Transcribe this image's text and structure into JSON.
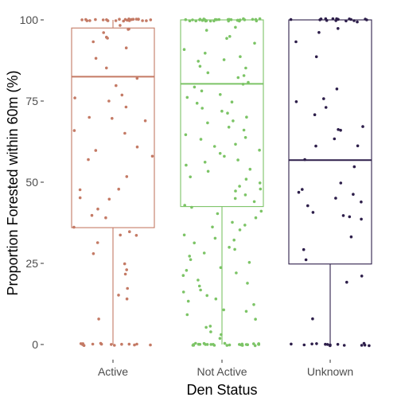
{
  "chart_data": {
    "type": "boxplot",
    "xlabel": "Den Status",
    "ylabel": "Proportion Forested within 60m (%)",
    "ylim": [
      0,
      100
    ],
    "yticks": [
      0,
      25,
      50,
      75,
      100
    ],
    "grid": false,
    "categories": [
      "Active",
      "Not Active",
      "Unknown"
    ],
    "colors": [
      "#c47a65",
      "#7cc466",
      "#2d1e4a"
    ],
    "boxes": [
      {
        "category": "Active",
        "min": 0,
        "q1": 36,
        "median": 82.5,
        "q3": 97.5,
        "max": 100
      },
      {
        "category": "Not Active",
        "min": 0,
        "q1": 42.5,
        "median": 80.3,
        "q3": 100,
        "max": 100
      },
      {
        "category": "Unknown",
        "min": 0,
        "q1": 24.8,
        "median": 56.8,
        "q3": 100,
        "max": 100
      }
    ],
    "points": [
      {
        "category": "Active",
        "values": [
          100,
          100,
          100,
          100,
          100,
          100,
          100,
          100,
          100,
          100,
          100,
          100,
          100,
          100,
          100,
          100,
          100,
          100,
          100,
          100,
          100,
          100,
          100,
          100,
          98,
          97,
          97,
          96,
          95,
          94,
          93,
          91,
          88,
          85,
          82,
          80,
          77,
          76,
          75,
          73,
          70,
          70,
          69,
          66,
          65,
          61,
          60,
          58,
          57,
          52,
          48,
          48,
          45,
          45,
          42,
          40,
          39,
          36,
          35,
          34,
          34,
          31,
          28,
          25,
          23,
          22,
          17,
          15,
          14,
          8,
          0,
          0,
          0,
          0,
          0,
          0,
          0,
          0,
          0,
          0,
          0,
          0,
          0,
          0
        ]
      },
      {
        "category": "Not Active",
        "values": [
          100,
          100,
          100,
          100,
          100,
          100,
          100,
          100,
          100,
          100,
          100,
          100,
          100,
          100,
          100,
          100,
          100,
          100,
          100,
          100,
          100,
          100,
          100,
          100,
          100,
          100,
          100,
          100,
          100,
          100,
          98,
          97,
          95,
          94,
          93,
          91,
          90,
          89,
          88,
          87,
          86,
          85,
          84,
          83,
          82,
          81,
          80,
          79,
          78,
          77,
          76,
          75,
          74,
          73,
          72,
          71,
          70,
          69,
          68,
          67,
          66,
          65,
          64,
          63,
          62,
          61,
          60,
          59,
          58,
          57,
          56,
          55,
          54,
          53,
          52,
          51,
          50,
          49,
          48,
          47,
          46,
          45,
          44,
          43,
          42,
          41,
          40,
          39,
          38,
          37,
          36,
          35,
          34,
          33,
          32,
          31,
          30,
          29,
          28,
          27,
          26,
          25,
          24,
          23,
          22,
          21,
          20,
          19,
          18,
          17,
          16,
          15,
          14,
          13,
          12,
          11,
          10,
          9,
          8,
          6,
          5,
          4,
          3,
          2,
          0,
          0,
          0,
          0,
          0,
          0,
          0,
          0,
          0,
          0,
          0,
          0,
          0,
          0,
          0,
          0,
          0,
          0,
          0,
          0,
          0,
          0,
          0,
          0,
          0,
          0
        ]
      },
      {
        "category": "Unknown",
        "values": [
          100,
          100,
          100,
          100,
          100,
          100,
          100,
          100,
          100,
          100,
          100,
          100,
          100,
          100,
          100,
          99,
          97,
          96,
          93,
          89,
          79,
          76,
          75,
          73,
          71,
          67,
          66,
          66,
          63,
          61,
          61,
          57,
          55,
          50,
          48,
          47,
          46,
          45,
          44,
          43,
          41,
          40,
          39,
          39,
          33,
          29,
          26,
          21,
          19,
          8,
          0,
          0,
          0,
          0,
          0,
          0,
          0,
          0,
          0,
          0,
          0,
          0,
          0,
          0
        ]
      }
    ]
  }
}
